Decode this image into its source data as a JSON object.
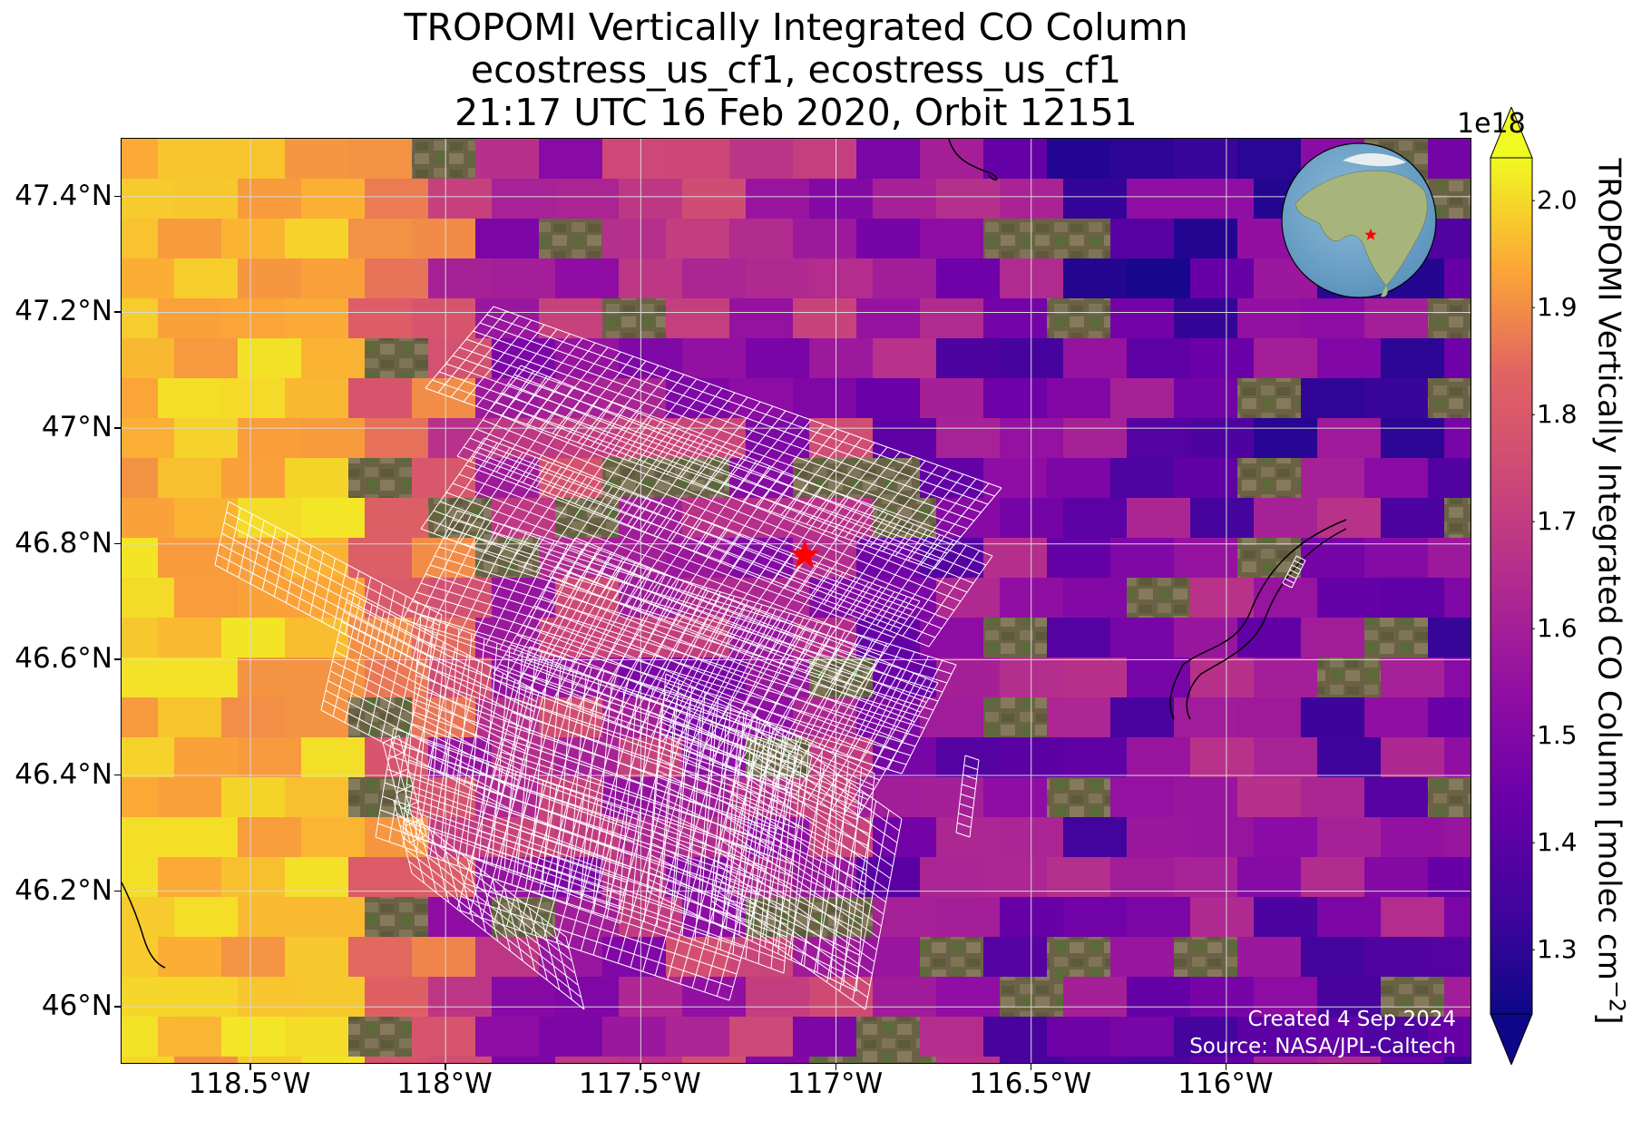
{
  "title": {
    "line1": "TROPOMI Vertically Integrated CO Column",
    "line2": "ecostress_us_cf1, ecostress_us_cf1",
    "line3": "21:17 UTC 16 Feb 2020, Orbit 12151"
  },
  "map": {
    "lon_range": [
      -118.83,
      -115.37
    ],
    "lat_range": [
      45.9,
      47.5
    ],
    "xticks": [
      {
        "value": -118.5,
        "label": "118.5°W"
      },
      {
        "value": -118.0,
        "label": "118°W"
      },
      {
        "value": -117.5,
        "label": "117.5°W"
      },
      {
        "value": -117.0,
        "label": "117°W"
      },
      {
        "value": -116.5,
        "label": "116.5°W"
      },
      {
        "value": -116.0,
        "label": "116°W"
      }
    ],
    "yticks": [
      {
        "value": 47.4,
        "label": "47.4°N"
      },
      {
        "value": 47.2,
        "label": "47.2°N"
      },
      {
        "value": 47.0,
        "label": "47°N"
      },
      {
        "value": 46.8,
        "label": "46.8°N"
      },
      {
        "value": 46.6,
        "label": "46.6°N"
      },
      {
        "value": 46.4,
        "label": "46.4°N"
      },
      {
        "value": 46.2,
        "label": "46.2°N"
      },
      {
        "value": 46.0,
        "label": "46°N"
      }
    ],
    "target_marker": {
      "lon": -117.08,
      "lat": 46.78,
      "color": "#ff0000",
      "symbol": "star"
    },
    "credit_line1": "Created 4 Sep 2024",
    "credit_line2": "Source: NASA/JPL-Caltech",
    "pixel_outline_color": "#ffffff",
    "grid_color": "#d8d8d8"
  },
  "colorbar": {
    "label": "TROPOMI Vertically Integrated CO Column [molec cm",
    "label_exponent": "−2",
    "label_close": "]",
    "exponent_label": "1e18",
    "colormap": "plasma",
    "range": [
      1.24,
      2.04
    ],
    "ticks": [
      "1.3",
      "1.4",
      "1.5",
      "1.6",
      "1.7",
      "1.8",
      "1.9",
      "2.0"
    ],
    "extend": "both"
  },
  "inset": {
    "description_icon": "globe-icon",
    "marker_color": "#ff0000"
  }
}
